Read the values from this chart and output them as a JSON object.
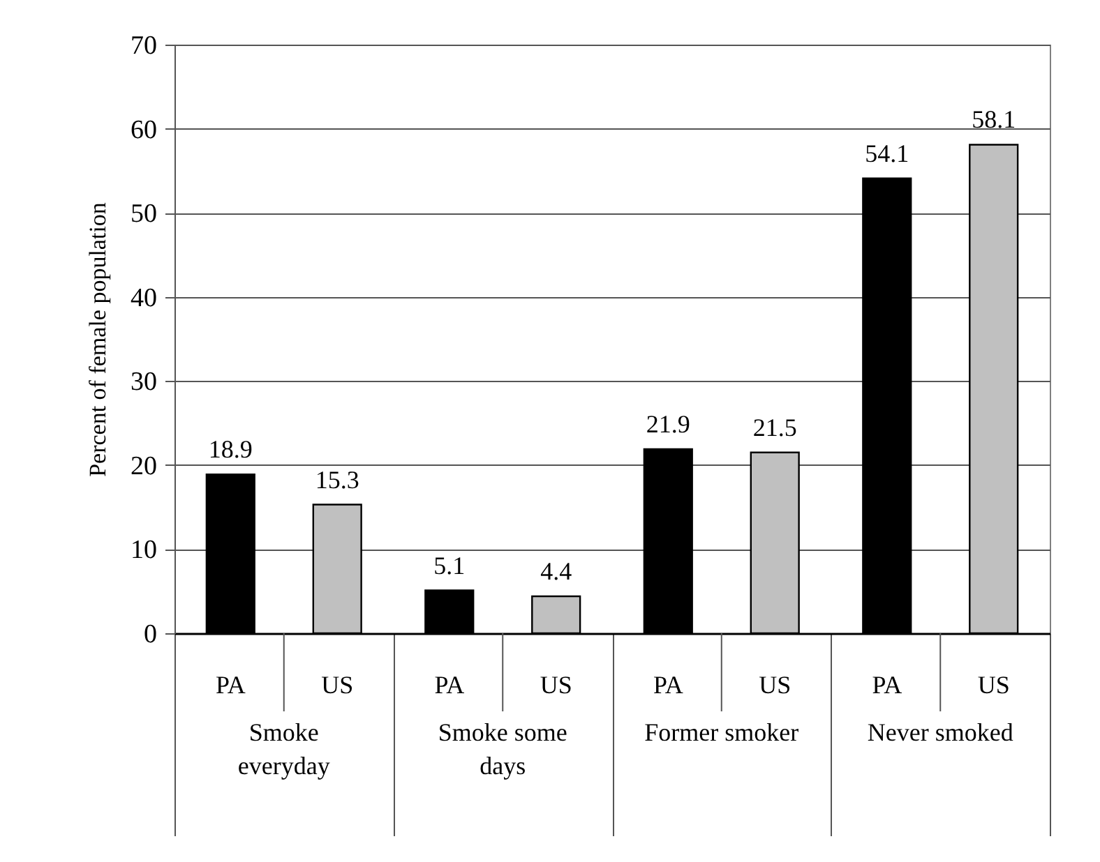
{
  "chart_data": {
    "type": "bar",
    "ylabel": "Percent of female population",
    "categories": [
      "Smoke everyday",
      "Smoke some days",
      "Former smoker",
      "Never smoked"
    ],
    "series": [
      {
        "name": "PA",
        "color": "#000000",
        "values": [
          18.9,
          5.1,
          21.9,
          54.1
        ]
      },
      {
        "name": "US",
        "color": "#c0c0c0",
        "values": [
          15.3,
          4.4,
          21.5,
          58.1
        ]
      }
    ],
    "ylim": [
      0,
      70
    ],
    "yticks": [
      0,
      10,
      20,
      30,
      40,
      50,
      60,
      70
    ],
    "grid": "y",
    "data_labels": true
  }
}
